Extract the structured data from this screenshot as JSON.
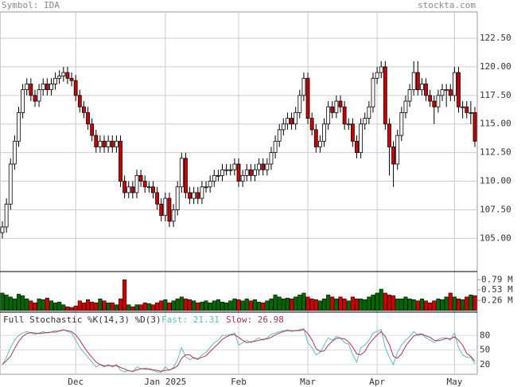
{
  "chart_data": {
    "type": "candlestick",
    "title": "Symbol: IDA",
    "source": "stockta.com",
    "up_color": "#ffffff",
    "down_color": "#cc0000",
    "grid": true,
    "ylim": [
      102.1,
      124.8
    ],
    "yticks": [
      {
        "value": 105,
        "label": "105.00"
      },
      {
        "value": 107.5,
        "label": "107.50"
      },
      {
        "value": 110,
        "label": "110.00"
      },
      {
        "value": 112.5,
        "label": "112.50"
      },
      {
        "value": 115,
        "label": "115.00"
      },
      {
        "value": 117.5,
        "label": "117.50"
      },
      {
        "value": 120,
        "label": "120.00"
      },
      {
        "value": 122.5,
        "label": "122.50"
      }
    ],
    "months": [
      {
        "index": 18,
        "label": "Dec"
      },
      {
        "index": 40,
        "label": "Jan 2025"
      },
      {
        "index": 58,
        "label": "Feb"
      },
      {
        "index": 75,
        "label": "Mar"
      },
      {
        "index": 92,
        "label": "Apr"
      },
      {
        "index": 111,
        "label": "May"
      }
    ],
    "open": [
      105.5,
      106,
      108,
      111.5,
      113.5,
      116,
      118,
      118.5,
      117.5,
      117,
      118,
      118.5,
      118,
      118.5,
      119,
      119.2,
      119.5,
      119,
      118.8,
      117.5,
      116.5,
      116,
      115,
      114,
      113,
      113.5,
      113,
      113.5,
      113,
      113.5,
      110,
      109,
      109.5,
      109,
      110.5,
      110,
      109.5,
      109.5,
      109,
      108,
      107,
      108.5,
      106.5,
      107.5,
      109.5,
      112,
      109,
      108.5,
      109,
      108.5,
      109.5,
      109.5,
      110,
      110.5,
      110.5,
      111,
      111,
      111,
      111.5,
      110,
      110.5,
      111,
      110.5,
      111,
      111.5,
      111,
      111.5,
      112.5,
      113.5,
      114.5,
      115,
      115.5,
      115,
      116,
      117.5,
      119,
      115.5,
      114.5,
      113,
      113.5,
      115,
      116.5,
      116,
      117,
      116.5,
      115,
      115,
      113.5,
      112.5,
      115,
      115.5,
      116.5,
      119,
      119.5,
      120,
      115,
      113,
      111.5,
      114,
      116,
      117,
      118,
      119.5,
      118,
      118.5,
      117.5,
      117,
      116.5,
      117.5,
      118,
      118,
      117.5,
      119.5,
      116.5,
      116.5,
      116,
      116
    ],
    "high": [
      106.5,
      108.5,
      112,
      114,
      116.5,
      118.5,
      119,
      119,
      118,
      118.5,
      119,
      119,
      119,
      119.5,
      119.7,
      120,
      120,
      119.5,
      119.3,
      118,
      117,
      116.5,
      115.5,
      114.5,
      114,
      114,
      114,
      114,
      114,
      114,
      110.5,
      110,
      110,
      111,
      111,
      110.5,
      110,
      110,
      109.5,
      108.5,
      109,
      109,
      108,
      110,
      112.5,
      112.5,
      109.5,
      109.5,
      109.5,
      110,
      110,
      110.5,
      111,
      111,
      111.5,
      111.5,
      111.5,
      112,
      112,
      111,
      111.5,
      111.5,
      111.5,
      112,
      112,
      112,
      113,
      114,
      115,
      115.5,
      116,
      116,
      116.5,
      118,
      119.5,
      119.5,
      116,
      115,
      114,
      115.5,
      117,
      117,
      117.5,
      117.5,
      117,
      115.5,
      115.5,
      114,
      115.5,
      116,
      117,
      119.5,
      120,
      120.5,
      120.5,
      115.5,
      113.5,
      114.5,
      116.5,
      117.5,
      118.5,
      120.5,
      120.5,
      119,
      119,
      118,
      117.5,
      118,
      118.5,
      118.5,
      118.5,
      120,
      120,
      117,
      117,
      117,
      116.5
    ],
    "low": [
      105,
      105.5,
      107.5,
      111,
      113,
      115.5,
      117.5,
      117,
      116.5,
      116.5,
      117.5,
      117.5,
      117.5,
      118,
      118.5,
      118.7,
      118.5,
      118.3,
      117,
      116,
      115.5,
      114.5,
      113.5,
      112.5,
      112.5,
      112.5,
      112.5,
      112.5,
      112.5,
      109.5,
      108.5,
      108.5,
      108.5,
      108.5,
      109.5,
      109,
      109,
      108.5,
      107.5,
      106.5,
      106.5,
      106,
      106,
      107,
      109,
      108.5,
      108,
      108,
      108,
      108,
      109,
      109,
      109.5,
      110,
      110,
      110.5,
      110.5,
      110.5,
      109.5,
      109.5,
      110,
      110,
      110,
      110.5,
      110.5,
      110.5,
      111,
      112,
      113,
      114,
      114.5,
      114.5,
      114.5,
      115.5,
      117,
      115,
      114,
      112.5,
      112.5,
      113,
      114.5,
      115.5,
      115.5,
      116,
      114.5,
      114.5,
      113,
      112,
      112,
      114.5,
      115,
      116,
      118.5,
      119,
      114.5,
      110.5,
      109.5,
      111,
      113.5,
      115.5,
      116.5,
      117.5,
      117.5,
      117.5,
      117,
      116.5,
      115,
      116,
      117,
      116.5,
      117,
      117,
      116,
      115.5,
      115.5,
      115,
      113
    ],
    "close": [
      106,
      108,
      111.5,
      113.5,
      116,
      118,
      118.5,
      117.5,
      117,
      118,
      118.5,
      118,
      118.5,
      119,
      119.2,
      119.5,
      119,
      118.8,
      117.5,
      116.5,
      116,
      115,
      114,
      113,
      113.5,
      113,
      113.5,
      113,
      113.5,
      110,
      109,
      109.5,
      109,
      110.5,
      110,
      109.5,
      109.5,
      109,
      108,
      107,
      108.5,
      106.5,
      107.5,
      109.5,
      112,
      109,
      108.5,
      109,
      108.5,
      109.5,
      109.5,
      110,
      110.5,
      110.5,
      111,
      111,
      111,
      111.5,
      110,
      110.5,
      111,
      110.5,
      111,
      111.5,
      111,
      111.5,
      112.5,
      113.5,
      114.5,
      115,
      115.5,
      115,
      116,
      117.5,
      119,
      115.5,
      114.5,
      113,
      113.5,
      115,
      116.5,
      116,
      117,
      116.5,
      115,
      115,
      113.5,
      112.5,
      115,
      115.5,
      116.5,
      119,
      119.5,
      120,
      115,
      113,
      111.5,
      114,
      116,
      117,
      118,
      119.5,
      118,
      118.5,
      117.5,
      117,
      116.5,
      117.5,
      118,
      118,
      117.5,
      119.5,
      116.5,
      116.5,
      116,
      116,
      113.5
    ],
    "volume": {
      "up_color": "#006600",
      "down_color": "#cc0000",
      "ylim": [
        0,
        1.0
      ],
      "yticks": [
        {
          "value": 0.79,
          "label": "0.79 M"
        },
        {
          "value": 0.53,
          "label": "0.53 M"
        },
        {
          "value": 0.26,
          "label": "0.26 M"
        }
      ],
      "values": [
        0.45,
        0.4,
        0.35,
        0.3,
        0.42,
        0.38,
        0.3,
        0.25,
        0.2,
        0.3,
        0.28,
        0.32,
        0.25,
        0.2,
        0.22,
        0.15,
        0.1,
        0.08,
        0.12,
        0.25,
        0.2,
        0.28,
        0.22,
        0.2,
        0.3,
        0.25,
        0.2,
        0.2,
        0.15,
        0.3,
        0.79,
        0.15,
        0.1,
        0.15,
        0.15,
        0.2,
        0.18,
        0.15,
        0.2,
        0.25,
        0.28,
        0.2,
        0.25,
        0.3,
        0.35,
        0.3,
        0.28,
        0.25,
        0.2,
        0.22,
        0.25,
        0.2,
        0.25,
        0.28,
        0.22,
        0.2,
        0.25,
        0.3,
        0.28,
        0.25,
        0.3,
        0.25,
        0.28,
        0.22,
        0.2,
        0.25,
        0.3,
        0.4,
        0.35,
        0.3,
        0.32,
        0.3,
        0.35,
        0.4,
        0.45,
        0.35,
        0.3,
        0.28,
        0.25,
        0.3,
        0.4,
        0.35,
        0.3,
        0.35,
        0.3,
        0.25,
        0.35,
        0.3,
        0.3,
        0.28,
        0.35,
        0.4,
        0.45,
        0.55,
        0.45,
        0.4,
        0.38,
        0.3,
        0.3,
        0.35,
        0.3,
        0.28,
        0.25,
        0.3,
        0.25,
        0.2,
        0.25,
        0.3,
        0.28,
        0.35,
        0.45,
        0.35,
        0.3,
        0.28,
        0.35,
        0.4,
        0.38
      ]
    },
    "stochastic": {
      "title": "Full Stochastic %K(14,3) %D(3)",
      "ylim": [
        0,
        128
      ],
      "yticks": [
        20,
        50,
        80
      ],
      "series": [
        {
          "name": "Fast: 21.31",
          "color": "#66bbbb",
          "values": [
            20,
            35,
            55,
            70,
            80,
            85,
            88,
            85,
            82,
            85,
            88,
            85,
            87,
            90,
            90,
            92,
            88,
            85,
            70,
            55,
            45,
            35,
            25,
            15,
            20,
            15,
            20,
            15,
            20,
            8,
            5,
            8,
            5,
            15,
            12,
            10,
            10,
            8,
            5,
            4,
            15,
            8,
            14,
            30,
            55,
            35,
            30,
            35,
            30,
            40,
            45,
            55,
            65,
            70,
            80,
            80,
            82,
            85,
            60,
            65,
            70,
            65,
            70,
            75,
            70,
            75,
            82,
            85,
            88,
            90,
            92,
            88,
            90,
            92,
            94,
            65,
            55,
            40,
            45,
            60,
            75,
            70,
            78,
            75,
            65,
            62,
            40,
            25,
            55,
            60,
            70,
            85,
            88,
            92,
            55,
            35,
            20,
            45,
            60,
            70,
            78,
            88,
            80,
            82,
            75,
            70,
            65,
            72,
            75,
            75,
            70,
            85,
            55,
            40,
            35,
            35,
            21.31
          ]
        },
        {
          "name": "Slow: 26.98",
          "color": "#aa3355",
          "values": [
            20,
            28,
            37,
            53,
            68,
            78,
            84,
            86,
            85,
            84,
            85,
            86,
            87,
            87,
            89,
            91,
            90,
            88,
            81,
            70,
            57,
            45,
            35,
            25,
            20,
            17,
            18,
            17,
            18,
            14,
            11,
            7,
            6,
            9,
            11,
            12,
            11,
            9,
            8,
            6,
            8,
            9,
            12,
            17,
            33,
            40,
            40,
            33,
            32,
            35,
            38,
            47,
            55,
            63,
            72,
            77,
            81,
            82,
            76,
            70,
            65,
            67,
            68,
            70,
            72,
            73,
            76,
            81,
            85,
            88,
            90,
            90,
            90,
            90,
            92,
            84,
            71,
            53,
            47,
            48,
            60,
            68,
            74,
            74,
            73,
            67,
            56,
            42,
            40,
            47,
            62,
            72,
            81,
            88,
            78,
            61,
            37,
            33,
            42,
            58,
            69,
            79,
            82,
            83,
            79,
            76,
            70,
            69,
            71,
            74,
            73,
            77,
            70,
            60,
            43,
            37,
            26.98
          ]
        }
      ]
    }
  }
}
